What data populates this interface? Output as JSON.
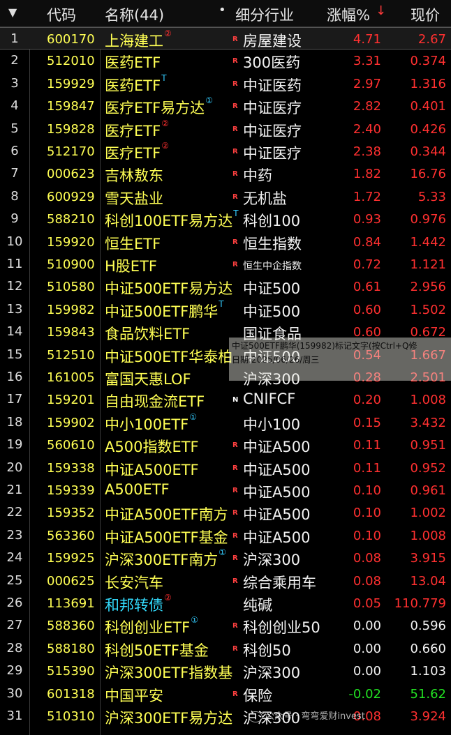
{
  "header": {
    "sort_arrow": "▼",
    "code": "代码",
    "name": "名称(44)",
    "dot": "•",
    "industry": "细分行业",
    "change": "涨幅%",
    "sort_indicator": "↓",
    "price": "现价"
  },
  "rows": [
    {
      "idx": "1",
      "code": "600170",
      "name": "上海建工",
      "badge": "②",
      "badge_color": "red",
      "mark": "R",
      "industry": "房屋建设",
      "change": "4.71",
      "price": "2.67",
      "dir": "up"
    },
    {
      "idx": "2",
      "code": "512010",
      "name": "医药ETF",
      "badge": "",
      "badge_color": "",
      "mark": "R",
      "industry": "300医药",
      "change": "3.31",
      "price": "0.374",
      "dir": "up"
    },
    {
      "idx": "3",
      "code": "159929",
      "name": "医药ETF",
      "badge": "T",
      "badge_color": "cyan",
      "mark": "R",
      "industry": "中证医药",
      "change": "2.97",
      "price": "1.316",
      "dir": "up"
    },
    {
      "idx": "4",
      "code": "159847",
      "name": "医疗ETF易方达",
      "badge": "①",
      "badge_color": "cyan",
      "mark": "R",
      "industry": "中证医疗",
      "change": "2.82",
      "price": "0.401",
      "dir": "up"
    },
    {
      "idx": "5",
      "code": "159828",
      "name": "医疗ETF",
      "badge": "②",
      "badge_color": "red",
      "mark": "R",
      "industry": "中证医疗",
      "change": "2.40",
      "price": "0.426",
      "dir": "up"
    },
    {
      "idx": "6",
      "code": "512170",
      "name": "医疗ETF",
      "badge": "②",
      "badge_color": "red",
      "mark": "R",
      "industry": "中证医疗",
      "change": "2.38",
      "price": "0.344",
      "dir": "up"
    },
    {
      "idx": "7",
      "code": "000623",
      "name": "吉林敖东",
      "badge": "",
      "badge_color": "",
      "mark": "R",
      "industry": "中药",
      "change": "1.82",
      "price": "16.76",
      "dir": "up"
    },
    {
      "idx": "8",
      "code": "600929",
      "name": "雪天盐业",
      "badge": "",
      "badge_color": "",
      "mark": "R",
      "industry": "无机盐",
      "change": "1.72",
      "price": "5.33",
      "dir": "up"
    },
    {
      "idx": "9",
      "code": "588210",
      "name": "科创100ETF易方达",
      "badge": "T",
      "badge_color": "cyan",
      "mark": "",
      "industry": "科创100",
      "change": "0.93",
      "price": "0.976",
      "dir": "up"
    },
    {
      "idx": "10",
      "code": "159920",
      "name": "恒生ETF",
      "badge": "",
      "badge_color": "",
      "mark": "R",
      "industry": "恒生指数",
      "change": "0.84",
      "price": "1.442",
      "dir": "up"
    },
    {
      "idx": "11",
      "code": "510900",
      "name": "H股ETF",
      "badge": "",
      "badge_color": "",
      "mark": "R",
      "industry": "恒生中企指数",
      "change": "0.72",
      "price": "1.121",
      "dir": "up",
      "small_ind": true
    },
    {
      "idx": "12",
      "code": "510580",
      "name": "中证500ETF易方达",
      "badge": "",
      "badge_color": "",
      "mark": "",
      "industry": "中证500",
      "change": "0.61",
      "price": "2.956",
      "dir": "up"
    },
    {
      "idx": "13",
      "code": "159982",
      "name": "中证500ETF鹏华",
      "badge": "T",
      "badge_color": "cyan",
      "mark": "",
      "industry": "中证500",
      "change": "0.60",
      "price": "1.502",
      "dir": "up"
    },
    {
      "idx": "14",
      "code": "159843",
      "name": "食品饮料ETF",
      "badge": "",
      "badge_color": "",
      "mark": "",
      "industry": "国证食品",
      "change": "0.60",
      "price": "0.672",
      "dir": "up"
    },
    {
      "idx": "15",
      "code": "512510",
      "name": "中证500ETF华泰柏",
      "badge": "",
      "badge_color": "",
      "mark": "",
      "industry": "中证500",
      "change": "0.54",
      "price": "1.667",
      "dir": "up"
    },
    {
      "idx": "16",
      "code": "161005",
      "name": "富国天惠LOF",
      "badge": "",
      "badge_color": "",
      "mark": "",
      "industry": "沪深300",
      "change": "0.28",
      "price": "2.501",
      "dir": "up"
    },
    {
      "idx": "17",
      "code": "159201",
      "name": "自由现金流ETF",
      "badge": "",
      "badge_color": "",
      "mark": "N",
      "mark_white": true,
      "industry": "CNIFCF",
      "change": "0.20",
      "price": "1.008",
      "dir": "up"
    },
    {
      "idx": "18",
      "code": "159902",
      "name": "中小100ETF",
      "badge": "①",
      "badge_color": "cyan",
      "mark": "",
      "industry": "中小100",
      "change": "0.15",
      "price": "3.432",
      "dir": "up"
    },
    {
      "idx": "19",
      "code": "560610",
      "name": "A500指数ETF",
      "badge": "",
      "badge_color": "",
      "mark": "R",
      "industry": "中证A500",
      "change": "0.11",
      "price": "0.951",
      "dir": "up"
    },
    {
      "idx": "20",
      "code": "159338",
      "name": "中证A500ETF",
      "badge": "",
      "badge_color": "",
      "mark": "R",
      "industry": "中证A500",
      "change": "0.11",
      "price": "0.952",
      "dir": "up"
    },
    {
      "idx": "21",
      "code": "159339",
      "name": "A500ETF",
      "badge": "",
      "badge_color": "",
      "mark": "R",
      "industry": "中证A500",
      "change": "0.10",
      "price": "0.961",
      "dir": "up"
    },
    {
      "idx": "22",
      "code": "159352",
      "name": "中证A500ETF南方",
      "badge": "",
      "badge_color": "",
      "mark": "R",
      "industry": "中证A500",
      "change": "0.10",
      "price": "1.002",
      "dir": "up"
    },
    {
      "idx": "23",
      "code": "563360",
      "name": "中证A500ETF基金",
      "badge": "",
      "badge_color": "",
      "mark": "R",
      "industry": "中证A500",
      "change": "0.10",
      "price": "1.008",
      "dir": "up"
    },
    {
      "idx": "24",
      "code": "159925",
      "name": "沪深300ETF南方",
      "badge": "①",
      "badge_color": "cyan",
      "mark": "R",
      "industry": "沪深300",
      "change": "0.08",
      "price": "3.915",
      "dir": "up"
    },
    {
      "idx": "25",
      "code": "000625",
      "name": "长安汽车",
      "badge": "",
      "badge_color": "",
      "mark": "R",
      "industry": "综合乘用车",
      "change": "0.08",
      "price": "13.04",
      "dir": "up"
    },
    {
      "idx": "26",
      "code": "113691",
      "name": "和邦转债",
      "badge": "②",
      "badge_color": "red",
      "mark": "",
      "industry": "纯碱",
      "change": "0.05",
      "price": "110.779",
      "dir": "up",
      "name_cyan": true
    },
    {
      "idx": "27",
      "code": "588360",
      "name": "科创创业ETF",
      "badge": "①",
      "badge_color": "cyan",
      "mark": "R",
      "industry": "科创创业50",
      "change": "0.00",
      "price": "0.596",
      "dir": "flat"
    },
    {
      "idx": "28",
      "code": "588180",
      "name": "科创50ETF基金",
      "badge": "",
      "badge_color": "",
      "mark": "R",
      "industry": "科创50",
      "change": "0.00",
      "price": "0.660",
      "dir": "flat"
    },
    {
      "idx": "29",
      "code": "515390",
      "name": "沪深300ETF指数基",
      "badge": "",
      "badge_color": "",
      "mark": "",
      "industry": "沪深300",
      "change": "0.00",
      "price": "1.103",
      "dir": "flat"
    },
    {
      "idx": "30",
      "code": "601318",
      "name": "中国平安",
      "badge": "",
      "badge_color": "",
      "mark": "R",
      "industry": "保险",
      "change": "-0.02",
      "price": "51.62",
      "dir": "down"
    },
    {
      "idx": "31",
      "code": "510310",
      "name": "沪深300ETF易方达",
      "badge": "",
      "badge_color": "",
      "mark": "",
      "industry": "沪深300",
      "change": "0.08",
      "price": "3.924",
      "dir": "up"
    }
  ],
  "tooltip": {
    "line1": "中证500ETF鹏华(159982)标记文字(按Ctrl+Q修",
    "line2": "日期:2025/06/26/周三"
  },
  "watermark": "公众号 · 弯弯爱财invest",
  "colors": {
    "background": "#000000",
    "code": "#ffff54",
    "up": "#ff3030",
    "down": "#22e022",
    "cyan": "#33ddff"
  }
}
